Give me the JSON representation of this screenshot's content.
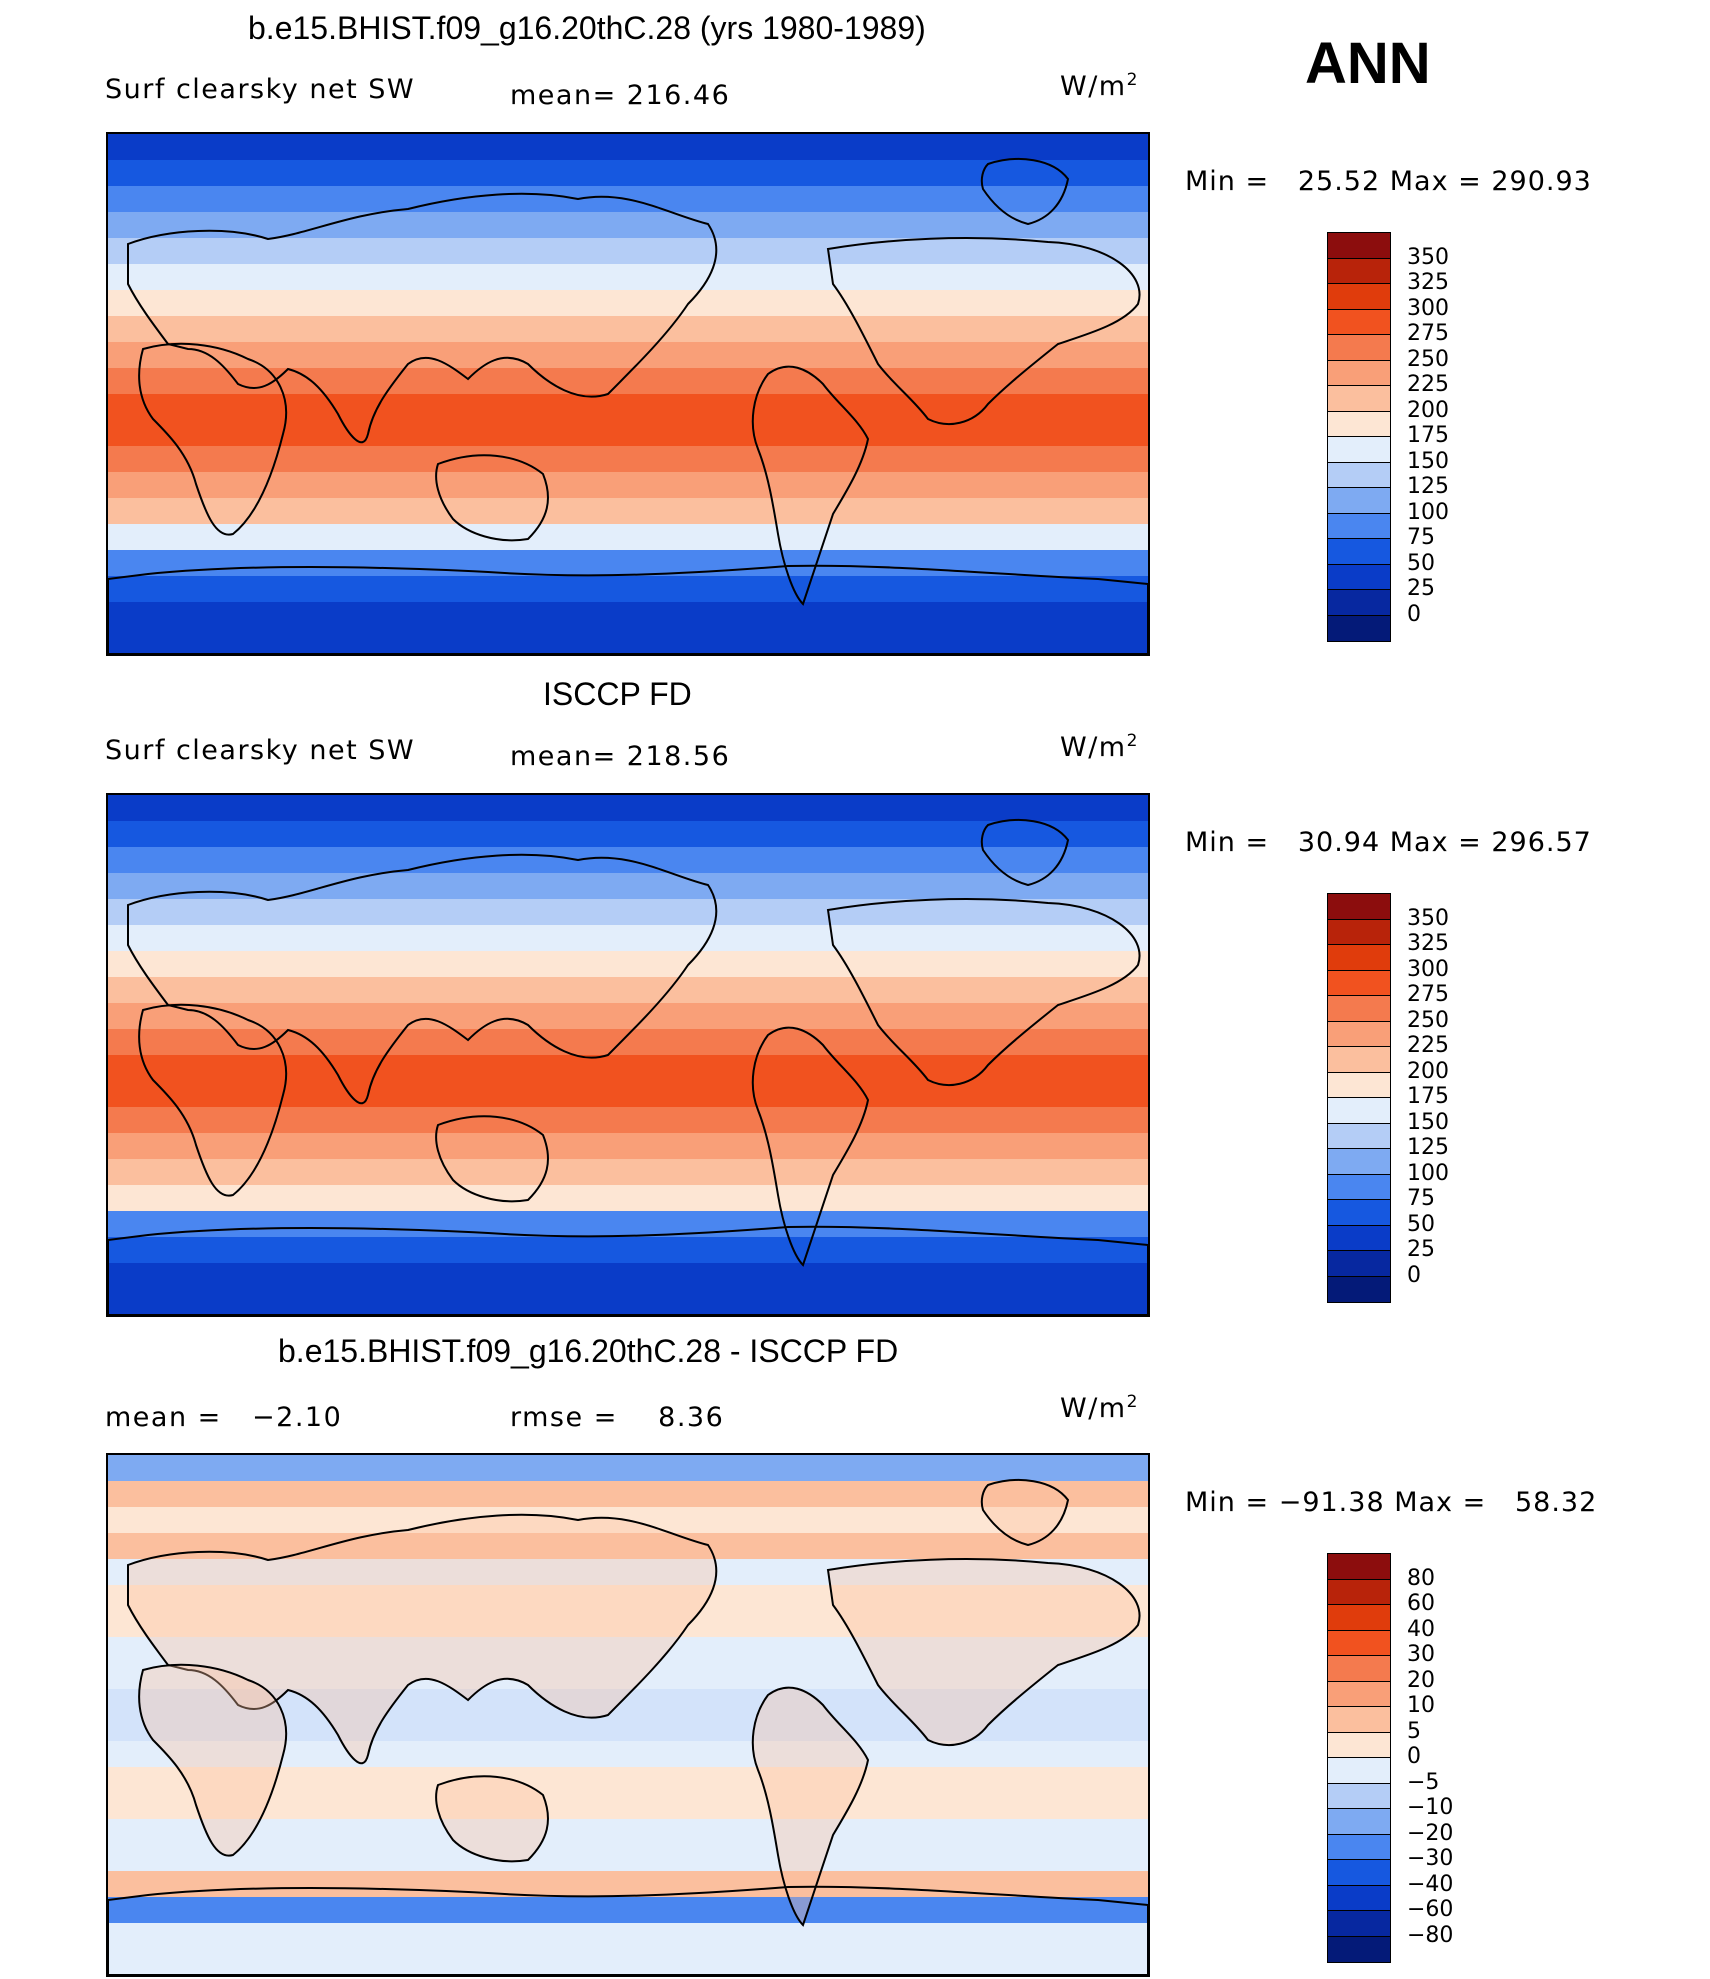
{
  "season": "ANN",
  "panels": [
    {
      "title": "b.e15.BHIST.f09_g16.20thC.28 (yrs 1980-1989)",
      "left_text": "Surf clearsky net SW",
      "center_text": "mean= 216.46",
      "units_base": "W/m",
      "units_exp": "2",
      "range_text": "Min =   25.52 Max = 290.93",
      "bands": [
        "#0a3cc8",
        "#1658e0",
        "#4a86f0",
        "#7eaaf2",
        "#b4cdf6",
        "#e3eefb",
        "#fde6d4",
        "#fbbf9e",
        "#f99f78",
        "#f47a4e",
        "#f1521f",
        "#f1521f",
        "#f47a4e",
        "#f99f78",
        "#fbbf9e",
        "#e3eefb",
        "#4a86f0",
        "#1658e0",
        "#0a3cc8",
        "#0a3cc8"
      ]
    },
    {
      "title": "ISCCP FD",
      "left_text": "Surf clearsky net SW",
      "center_text": "mean= 218.56",
      "units_base": "W/m",
      "units_exp": "2",
      "range_text": "Min =   30.94 Max = 296.57",
      "bands": [
        "#0a3cc8",
        "#1658e0",
        "#4a86f0",
        "#7eaaf2",
        "#b4cdf6",
        "#e3eefb",
        "#fde6d4",
        "#fbbf9e",
        "#f99f78",
        "#f47a4e",
        "#f1521f",
        "#f1521f",
        "#f47a4e",
        "#f99f78",
        "#fbbf9e",
        "#fde6d4",
        "#4a86f0",
        "#1658e0",
        "#0a3cc8",
        "#0a3cc8"
      ]
    },
    {
      "title": "b.e15.BHIST.f09_g16.20thC.28 - ISCCP FD",
      "left_text": "mean =   −2.10",
      "center_text": "rmse =    8.36",
      "units_base": "W/m",
      "units_exp": "2",
      "range_text": "Min = −91.38 Max =   58.32",
      "bands": [
        "#7eaaf2",
        "#fbbf9e",
        "#fde6d4",
        "#fbbf9e",
        "#e3eefb",
        "#fde6d4",
        "#fde6d4",
        "#e3eefb",
        "#e3eefb",
        "#d3e3fa",
        "#d3e3fa",
        "#e3eefb",
        "#fde6d4",
        "#fde6d4",
        "#e3eefb",
        "#e3eefb",
        "#fbbf9e",
        "#4a86f0",
        "#e3eefb",
        "#e3eefb"
      ]
    }
  ],
  "colorbars": [
    {
      "labels": [
        "350",
        "325",
        "300",
        "275",
        "250",
        "225",
        "200",
        "175",
        "150",
        "125",
        "100",
        "75",
        "50",
        "25",
        "0"
      ],
      "colors": [
        "#8c0d0d",
        "#b8230a",
        "#e03c0c",
        "#f1521f",
        "#f47a4e",
        "#f99f78",
        "#fbbf9e",
        "#fde6d4",
        "#e3eefb",
        "#b4cdf6",
        "#7eaaf2",
        "#4a86f0",
        "#1658e0",
        "#0a3cc8",
        "#0728a0",
        "#041a78"
      ]
    },
    {
      "labels": [
        "350",
        "325",
        "300",
        "275",
        "250",
        "225",
        "200",
        "175",
        "150",
        "125",
        "100",
        "75",
        "50",
        "25",
        "0"
      ],
      "colors": [
        "#8c0d0d",
        "#b8230a",
        "#e03c0c",
        "#f1521f",
        "#f47a4e",
        "#f99f78",
        "#fbbf9e",
        "#fde6d4",
        "#e3eefb",
        "#b4cdf6",
        "#7eaaf2",
        "#4a86f0",
        "#1658e0",
        "#0a3cc8",
        "#0728a0",
        "#041a78"
      ]
    },
    {
      "labels": [
        "80",
        "60",
        "40",
        "30",
        "20",
        "10",
        "5",
        "0",
        "−5",
        "−10",
        "−20",
        "−30",
        "−40",
        "−60",
        "−80"
      ],
      "colors": [
        "#8c0d0d",
        "#b8230a",
        "#e03c0c",
        "#f1521f",
        "#f47a4e",
        "#f99f78",
        "#fbbf9e",
        "#fde6d4",
        "#e3eefb",
        "#b4cdf6",
        "#7eaaf2",
        "#4a86f0",
        "#1658e0",
        "#0a3cc8",
        "#0728a0",
        "#041a78"
      ]
    }
  ]
}
